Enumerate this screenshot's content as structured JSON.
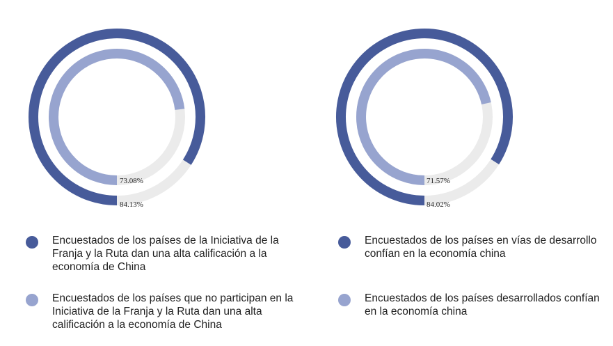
{
  "colors": {
    "outer": "#475b9a",
    "inner": "#97a4cf",
    "track": "#ebebeb"
  },
  "chart_data": [
    {
      "type": "donut",
      "series": [
        {
          "name": "Encuestados de los países de la Iniciativa de la Franja y la Ruta dan una alta calificación a la economía de China",
          "value": 84.13,
          "label": "84.13%"
        },
        {
          "name": "Encuestados de los países que no participan en la Iniciativa de la Franja y la Ruta dan una alta calificación a la economía de China",
          "value": 73.08,
          "label": "73.08%"
        }
      ]
    },
    {
      "type": "donut",
      "series": [
        {
          "name": "Encuestados de los países en vías de desarrollo confían en la economía china",
          "value": 84.02,
          "label": "84.02%"
        },
        {
          "name": "Encuestados de los países desarrollados confían en la economía china",
          "value": 71.57,
          "label": "71.57%"
        }
      ]
    }
  ]
}
